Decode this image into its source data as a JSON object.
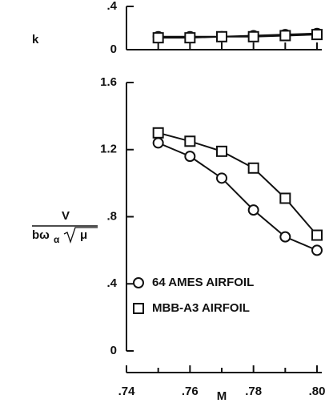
{
  "chart_data": [
    {
      "type": "line",
      "ylabel": "k",
      "xlim": [
        0.74,
        0.8
      ],
      "xticks": [
        0.74,
        0.75,
        0.76,
        0.77,
        0.78,
        0.79,
        0.8
      ],
      "ylim": [
        0,
        0.4
      ],
      "yticks": [
        0,
        {
          "value": 0.4,
          "label": ".4"
        }
      ],
      "series": [
        {
          "marker": "circle",
          "color": "#111",
          "x": [
            0.75,
            0.76,
            0.77,
            0.78,
            0.79,
            0.8
          ],
          "values": [
            0.12,
            0.12,
            0.12,
            0.13,
            0.14,
            0.15
          ]
        },
        {
          "marker": "square",
          "color": "#111",
          "x": [
            0.75,
            0.76,
            0.77,
            0.78,
            0.79,
            0.8
          ],
          "values": [
            0.11,
            0.11,
            0.12,
            0.12,
            0.13,
            0.14
          ]
        }
      ]
    },
    {
      "type": "line",
      "xlabel": "M",
      "ylabel_numerator": "V",
      "ylabel_denominator": "bω",
      "ylabel_subscript": "α",
      "ylabel_root": "μ",
      "xlim": [
        0.74,
        0.8
      ],
      "xticks": [
        {
          "value": 0.74,
          "label": ".74"
        },
        {
          "value": 0.76,
          "label": ".76"
        },
        {
          "value": 0.78,
          "label": ".78"
        },
        {
          "value": 0.8,
          "label": ".80"
        }
      ],
      "xminorticks": [
        0.75,
        0.77,
        0.79
      ],
      "ylim": [
        0,
        1.6
      ],
      "yticks": [
        0,
        {
          "value": 0.4,
          "label": ".4"
        },
        {
          "value": 0.8,
          "label": ".8"
        },
        1.2,
        1.6
      ],
      "series": [
        {
          "name": "64 AMES AIRFOIL",
          "marker": "circle",
          "color": "#111",
          "x": [
            0.75,
            0.76,
            0.77,
            0.78,
            0.79,
            0.8
          ],
          "values": [
            1.24,
            1.16,
            1.03,
            0.84,
            0.68,
            0.6
          ]
        },
        {
          "name": "MBB-A3 AIRFOIL",
          "marker": "square",
          "color": "#111",
          "x": [
            0.75,
            0.76,
            0.77,
            0.78,
            0.79,
            0.8
          ],
          "values": [
            1.3,
            1.25,
            1.19,
            1.09,
            0.91,
            0.69
          ]
        }
      ]
    }
  ]
}
